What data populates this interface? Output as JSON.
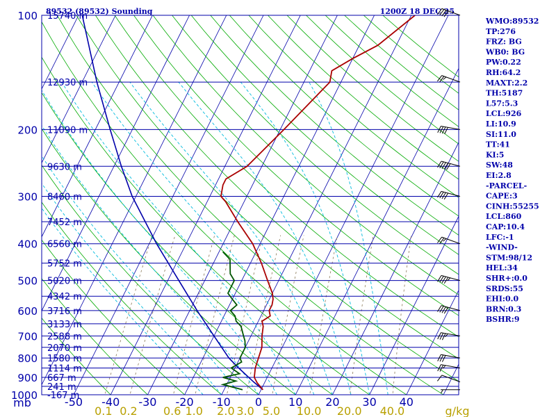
{
  "chart_data": {
    "type": "skew-t",
    "title": "89532 (89532) Sounding",
    "time": "1200Z 18 DEC 25",
    "pressure_unit_label": "mb",
    "mixing_ratio_unit_label": "g/kg",
    "pressure_levels": [
      100,
      200,
      300,
      400,
      500,
      600,
      700,
      800,
      900,
      1000
    ],
    "pressure_labels": [
      "100",
      "200",
      "300",
      "400",
      "500",
      "600",
      "700",
      "800",
      "900",
      "1000"
    ],
    "height_levels": [
      {
        "p": 100,
        "label": "15740 m"
      },
      {
        "p": 150,
        "label": "12930 m"
      },
      {
        "p": 200,
        "label": "11090 m"
      },
      {
        "p": 250,
        "label": "9630 m"
      },
      {
        "p": 300,
        "label": "8460 m"
      },
      {
        "p": 350,
        "label": "7452 m"
      },
      {
        "p": 400,
        "label": "6560 m"
      },
      {
        "p": 450,
        "label": "5752 m"
      },
      {
        "p": 500,
        "label": "5020 m"
      },
      {
        "p": 550,
        "label": "4342 m"
      },
      {
        "p": 600,
        "label": "3716 m"
      },
      {
        "p": 650,
        "label": "3133 m"
      },
      {
        "p": 700,
        "label": "2588 m"
      },
      {
        "p": 750,
        "label": "2070 m"
      },
      {
        "p": 800,
        "label": "1580 m"
      },
      {
        "p": 850,
        "label": "1114 m"
      },
      {
        "p": 900,
        "label": "667 m"
      },
      {
        "p": 950,
        "label": "241 m"
      },
      {
        "p": 1000,
        "label": "-167 m"
      }
    ],
    "temperature_ticks": [
      -50,
      -40,
      -30,
      -20,
      -10,
      0,
      10,
      20,
      30,
      40
    ],
    "temperature_labels": [
      "-50",
      "-40",
      "-30",
      "-20",
      "-10",
      "0",
      "10",
      "20",
      "30",
      "40"
    ],
    "mixing_ratio_ticks": [
      0.1,
      0.2,
      0.6,
      1.0,
      2.0,
      3.0,
      5.0,
      10.0,
      20.0,
      40.0
    ],
    "mixing_ratio_labels": [
      "0.1",
      "0.2",
      "0.6",
      "1.0",
      "2.0",
      "3.0",
      "5.0",
      "10.0",
      "20.0",
      "40.0"
    ],
    "temperature_profile": [
      {
        "p": 970,
        "t": 0.5
      },
      {
        "p": 930,
        "t": -2
      },
      {
        "p": 900,
        "t": -3.5
      },
      {
        "p": 850,
        "t": -4.5
      },
      {
        "p": 800,
        "t": -5
      },
      {
        "p": 750,
        "t": -5.5
      },
      {
        "p": 700,
        "t": -7
      },
      {
        "p": 660,
        "t": -8
      },
      {
        "p": 640,
        "t": -9
      },
      {
        "p": 620,
        "t": -7.5
      },
      {
        "p": 600,
        "t": -8.5
      },
      {
        "p": 580,
        "t": -8.5
      },
      {
        "p": 560,
        "t": -9
      },
      {
        "p": 540,
        "t": -10
      },
      {
        "p": 500,
        "t": -13
      },
      {
        "p": 450,
        "t": -17
      },
      {
        "p": 400,
        "t": -22
      },
      {
        "p": 350,
        "t": -29
      },
      {
        "p": 310,
        "t": -35
      },
      {
        "p": 300,
        "t": -37
      },
      {
        "p": 280,
        "t": -38
      },
      {
        "p": 270,
        "t": -38
      },
      {
        "p": 250,
        "t": -34
      },
      {
        "p": 200,
        "t": -29
      },
      {
        "p": 150,
        "t": -23
      },
      {
        "p": 140,
        "t": -24
      },
      {
        "p": 130,
        "t": -20
      },
      {
        "p": 120,
        "t": -15
      },
      {
        "p": 100,
        "t": -9
      }
    ],
    "dewpoint_profile": [
      {
        "p": 970,
        "t": -5
      },
      {
        "p": 940,
        "t": -11
      },
      {
        "p": 920,
        "t": -8
      },
      {
        "p": 900,
        "t": -12
      },
      {
        "p": 880,
        "t": -8
      },
      {
        "p": 850,
        "t": -11
      },
      {
        "p": 820,
        "t": -9
      },
      {
        "p": 800,
        "t": -10
      },
      {
        "p": 780,
        "t": -10
      },
      {
        "p": 750,
        "t": -10
      },
      {
        "p": 720,
        "t": -11
      },
      {
        "p": 700,
        "t": -12
      },
      {
        "p": 660,
        "t": -14
      },
      {
        "p": 640,
        "t": -16
      },
      {
        "p": 620,
        "t": -17
      },
      {
        "p": 600,
        "t": -19
      },
      {
        "p": 580,
        "t": -18
      },
      {
        "p": 560,
        "t": -20
      },
      {
        "p": 540,
        "t": -22
      },
      {
        "p": 520,
        "t": -22
      },
      {
        "p": 500,
        "t": -22
      },
      {
        "p": 480,
        "t": -24
      },
      {
        "p": 460,
        "t": -25
      },
      {
        "p": 440,
        "t": -26
      },
      {
        "p": 420,
        "t": -29
      }
    ],
    "parcel_profile": [
      {
        "p": 970,
        "t": 0.5
      },
      {
        "p": 926,
        "t": -3
      },
      {
        "p": 850,
        "t": -9
      },
      {
        "p": 800,
        "t": -13
      },
      {
        "p": 700,
        "t": -20
      },
      {
        "p": 600,
        "t": -28
      },
      {
        "p": 500,
        "t": -37
      },
      {
        "p": 400,
        "t": -48
      },
      {
        "p": 300,
        "t": -61
      },
      {
        "p": 250,
        "t": -68
      },
      {
        "p": 200,
        "t": -76
      },
      {
        "p": 150,
        "t": -86
      },
      {
        "p": 100,
        "t": -99
      }
    ],
    "winds": [
      {
        "p": 970,
        "dir": 270,
        "spd": 5
      },
      {
        "p": 925,
        "dir": 290,
        "spd": 10
      },
      {
        "p": 850,
        "dir": 280,
        "spd": 25
      },
      {
        "p": 800,
        "dir": 280,
        "spd": 30
      },
      {
        "p": 700,
        "dir": 280,
        "spd": 35
      },
      {
        "p": 600,
        "dir": 285,
        "spd": 40
      },
      {
        "p": 500,
        "dir": 285,
        "spd": 45
      },
      {
        "p": 400,
        "dir": 290,
        "spd": 55
      },
      {
        "p": 300,
        "dir": 285,
        "spd": 70
      },
      {
        "p": 250,
        "dir": 285,
        "spd": 80
      },
      {
        "p": 200,
        "dir": 280,
        "spd": 70
      },
      {
        "p": 150,
        "dir": 290,
        "spd": 55
      },
      {
        "p": 100,
        "dir": 290,
        "spd": 40
      }
    ],
    "indices": [
      "WMO:89532",
      "TP:276",
      "FRZ: BG",
      "WB0: BG",
      "PW:0.22",
      "RH:64.2",
      "MAXT:2.2",
      "TH:5187",
      "L57:5.3",
      "LCL:926",
      "LI:10.9",
      "SI:11.0",
      "TT:41",
      "KI:5",
      "SW:48",
      "EI:2.8",
      "-PARCEL-",
      "CAPE:3",
      "CINH:55255",
      "LCL:860",
      "CAP:10.4",
      "LFC:-1",
      "-WIND-",
      "STM:98/12",
      "HEL:34",
      "SHR+:0.0",
      "SRDS:55",
      "EHI:0.0",
      "BRN:0.3",
      "BSHR:9"
    ],
    "colors": {
      "pressure_lines": "#0000aa",
      "isotherms": "#0000aa",
      "dry_adiabats": "#00aa00",
      "moist_adiabats": "#00bbdd",
      "mixing_ratio": "#887755",
      "temperature": "#aa0000",
      "dewpoint": "#005500",
      "parcel": "#0000aa",
      "text": "#0000aa",
      "mixing_label": "#b8a000"
    }
  }
}
